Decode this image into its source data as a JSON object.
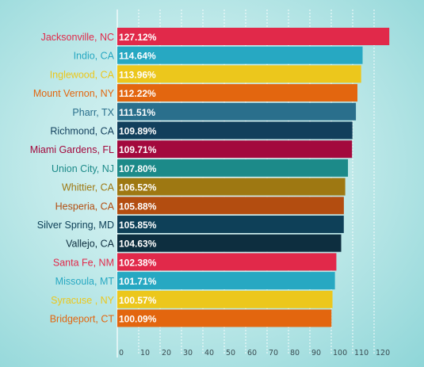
{
  "chart_data": {
    "type": "bar",
    "orientation": "horizontal",
    "title": "",
    "xlabel": "",
    "ylabel": "",
    "xlim": [
      0,
      130
    ],
    "ticks": [
      0,
      10,
      20,
      30,
      40,
      50,
      60,
      70,
      80,
      90,
      100,
      110,
      120
    ],
    "grid": true,
    "legend": "none",
    "categories": [
      "Jacksonville, NC",
      "Indio, CA",
      "Inglewood, CA",
      "Mount Vernon, NY",
      "Pharr, TX",
      "Richmond, CA",
      "Miami Gardens, FL",
      "Union City, NJ",
      "Whittier, CA",
      "Hesperia, CA",
      "Silver Spring, MD",
      "Vallejo, CA",
      "Santa Fe, NM",
      "Missoula, MT",
      "Syracuse , NY",
      "Bridgeport, CT"
    ],
    "values": [
      127.12,
      114.64,
      113.96,
      112.22,
      111.51,
      109.89,
      109.71,
      107.8,
      106.52,
      105.88,
      105.85,
      104.63,
      102.38,
      101.71,
      100.57,
      100.09
    ],
    "value_labels": [
      "127.12%",
      "114.64%",
      "113.96%",
      "112.22%",
      "111.51%",
      "109.89%",
      "109.71%",
      "107.80%",
      "106.52%",
      "105.88%",
      "105.85%",
      "104.63%",
      "102.38%",
      "101.71%",
      "100.57%",
      "100.09%"
    ],
    "colors": [
      "#e1294a",
      "#27a8c2",
      "#ecc71c",
      "#e3660f",
      "#2a6f8c",
      "#123f5c",
      "#a3093d",
      "#1c8a89",
      "#9e7812",
      "#b34d10",
      "#0e4058",
      "#0d2e3f",
      "#e1294a",
      "#27a8c2",
      "#ecc71c",
      "#e3660f"
    ]
  }
}
